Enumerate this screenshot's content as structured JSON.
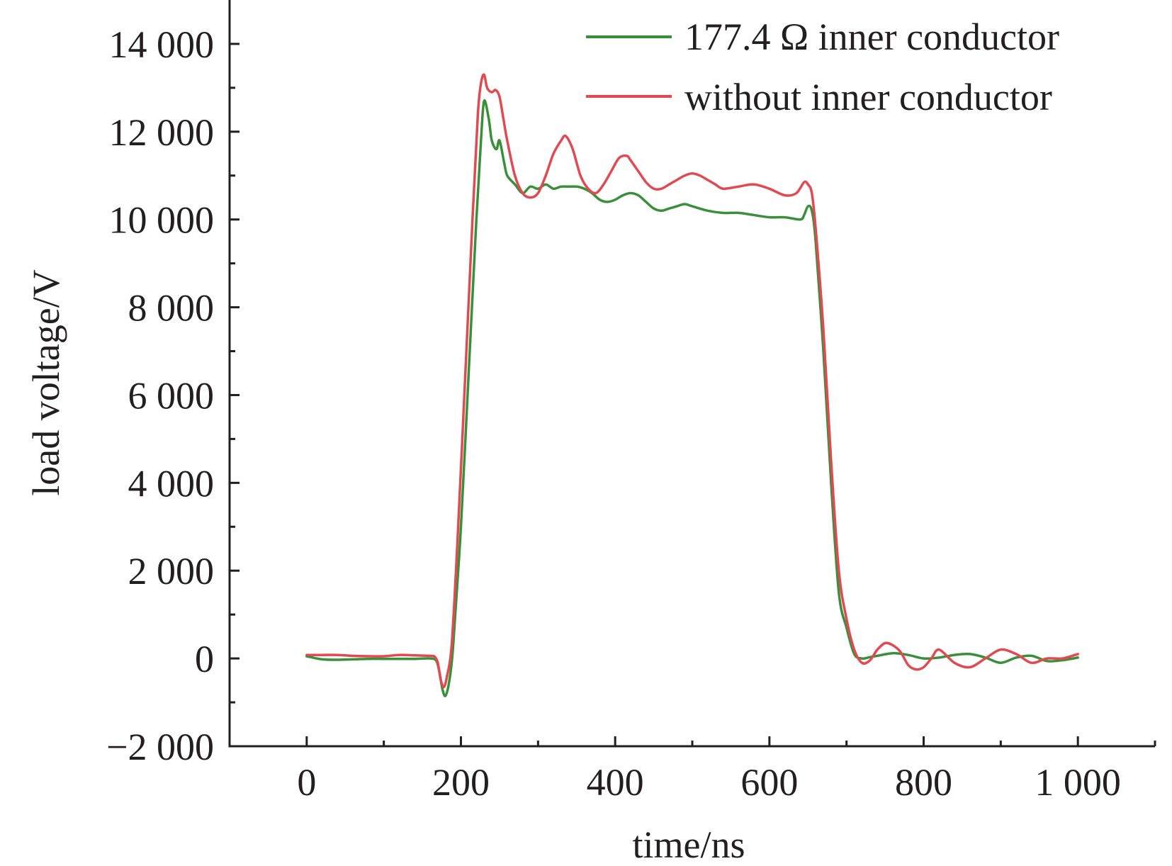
{
  "chart_data": {
    "type": "line",
    "xlabel": "time/ns",
    "ylabel": "load voltage/V",
    "xlim": [
      -100,
      1100
    ],
    "ylim": [
      -2000,
      15000
    ],
    "x_ticks": [
      0,
      200,
      400,
      600,
      800,
      1000
    ],
    "x_tick_labels": [
      "0",
      "200",
      "400",
      "600",
      "800",
      "1 000"
    ],
    "x_minor_ticks": [
      100,
      300,
      500,
      700,
      900,
      1100
    ],
    "y_ticks": [
      -2000,
      0,
      2000,
      4000,
      6000,
      8000,
      10000,
      12000,
      14000
    ],
    "y_tick_labels": [
      "−2 000",
      "0",
      "2 000",
      "4 000",
      "6 000",
      "8 000",
      "10 000",
      "12 000",
      "14 000"
    ],
    "y_minor_ticks": [
      -1000,
      1000,
      3000,
      5000,
      7000,
      9000,
      11000,
      13000
    ],
    "grid": false,
    "legend_position": "top-right",
    "series": [
      {
        "name": "177.4 Ω inner conductor",
        "color": "#3a8f3a",
        "x": [
          0,
          20,
          40,
          60,
          80,
          100,
          120,
          140,
          160,
          168,
          172,
          176,
          180,
          185,
          190,
          200,
          210,
          220,
          226,
          230,
          236,
          240,
          246,
          250,
          256,
          260,
          270,
          280,
          290,
          300,
          310,
          320,
          330,
          340,
          350,
          360,
          370,
          380,
          390,
          400,
          410,
          420,
          430,
          440,
          450,
          460,
          470,
          480,
          490,
          500,
          520,
          540,
          560,
          580,
          600,
          620,
          640,
          645,
          650,
          655,
          660,
          670,
          680,
          690,
          700,
          710,
          720,
          730,
          740,
          760,
          780,
          800,
          820,
          840,
          860,
          880,
          900,
          920,
          940,
          960,
          980,
          1000
        ],
        "y": [
          50,
          -20,
          -30,
          -20,
          -10,
          -10,
          -10,
          -10,
          0,
          -50,
          -300,
          -700,
          -850,
          -500,
          300,
          3000,
          6500,
          10000,
          11800,
          12700,
          12300,
          11800,
          11600,
          11800,
          11300,
          11000,
          10800,
          10600,
          10750,
          10700,
          10800,
          10700,
          10750,
          10750,
          10750,
          10700,
          10600,
          10450,
          10400,
          10450,
          10550,
          10600,
          10550,
          10400,
          10250,
          10200,
          10250,
          10300,
          10350,
          10300,
          10200,
          10150,
          10150,
          10100,
          10050,
          10050,
          10000,
          10100,
          10300,
          10200,
          9500,
          7000,
          4000,
          1500,
          700,
          100,
          0,
          30,
          60,
          120,
          80,
          0,
          20,
          80,
          100,
          20,
          -100,
          20,
          60,
          -60,
          -40,
          20
        ]
      },
      {
        "name": "without inner conductor",
        "color": "#e04a50",
        "x": [
          0,
          20,
          40,
          60,
          80,
          100,
          120,
          140,
          160,
          166,
          170,
          174,
          178,
          182,
          188,
          195,
          205,
          215,
          222,
          226,
          230,
          234,
          240,
          245,
          250,
          255,
          260,
          270,
          280,
          290,
          300,
          310,
          320,
          330,
          336,
          345,
          355,
          365,
          375,
          385,
          395,
          405,
          415,
          420,
          430,
          440,
          450,
          460,
          470,
          480,
          490,
          500,
          510,
          520,
          530,
          540,
          560,
          580,
          600,
          620,
          635,
          645,
          650,
          655,
          660,
          670,
          680,
          690,
          700,
          710,
          720,
          730,
          740,
          750,
          760,
          770,
          780,
          790,
          800,
          810,
          820,
          840,
          860,
          880,
          900,
          920,
          940,
          960,
          980,
          1000
        ],
        "y": [
          80,
          80,
          80,
          60,
          50,
          50,
          80,
          70,
          60,
          40,
          -100,
          -500,
          -650,
          -400,
          300,
          2500,
          6200,
          10000,
          12400,
          13100,
          13300,
          13000,
          12900,
          12950,
          12800,
          12300,
          11800,
          11000,
          10600,
          10500,
          10600,
          11000,
          11500,
          11800,
          11900,
          11600,
          11000,
          10700,
          10600,
          10800,
          11100,
          11400,
          11450,
          11350,
          11100,
          10850,
          10700,
          10700,
          10800,
          10900,
          11000,
          11050,
          11000,
          10900,
          10800,
          10700,
          10750,
          10800,
          10700,
          10550,
          10600,
          10850,
          10800,
          10600,
          9800,
          7500,
          4500,
          2000,
          900,
          200,
          -100,
          -50,
          200,
          350,
          300,
          150,
          -150,
          -250,
          -200,
          0,
          200,
          -100,
          -200,
          0,
          200,
          100,
          -100,
          0,
          0,
          100
        ]
      }
    ]
  }
}
